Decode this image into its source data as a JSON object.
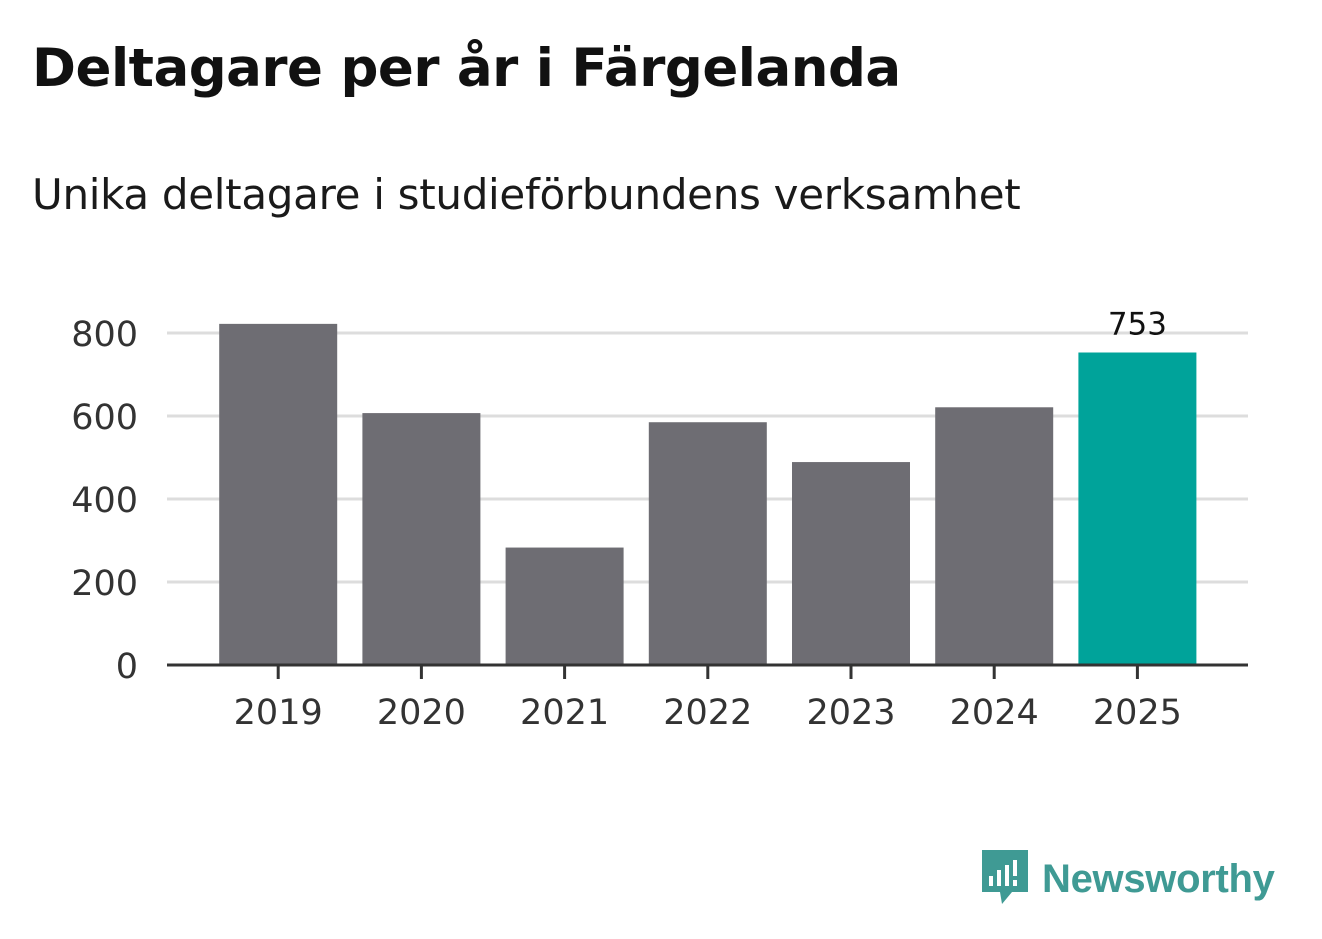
{
  "title": "Deltagare per år i Färgelanda",
  "subtitle": "Unika deltagare i studieförbundens verksamhet",
  "brand": {
    "name": "Newsworthy",
    "color": "#3f9a94"
  },
  "colors": {
    "bar": "#6e6d73",
    "highlight": "#00a39a",
    "grid": "#dddddd",
    "axis": "#333333",
    "text": "#333333"
  },
  "chart_data": {
    "type": "bar",
    "categories": [
      "2019",
      "2020",
      "2021",
      "2022",
      "2023",
      "2024",
      "2025"
    ],
    "values": [
      822,
      607,
      283,
      585,
      489,
      621,
      753
    ],
    "highlight_index": 6,
    "data_labels": [
      {
        "index": 6,
        "text": "753"
      }
    ],
    "yticks": [
      0,
      200,
      400,
      600,
      800
    ],
    "ylim": [
      0,
      850
    ],
    "grid": true,
    "xlabel": "",
    "ylabel": ""
  }
}
